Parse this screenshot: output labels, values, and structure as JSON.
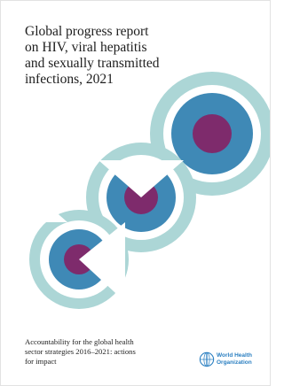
{
  "cover": {
    "title_lines": [
      "Global progress report",
      "on HIV, viral hepatitis",
      "and sexually transmitted",
      "infections, 2021"
    ],
    "subtitle_lines": [
      "Accountability for the global health",
      "sector strategies 2016–2021: actions",
      "for impact"
    ],
    "organization_lines": [
      "World Health",
      "Organization"
    ]
  }
}
